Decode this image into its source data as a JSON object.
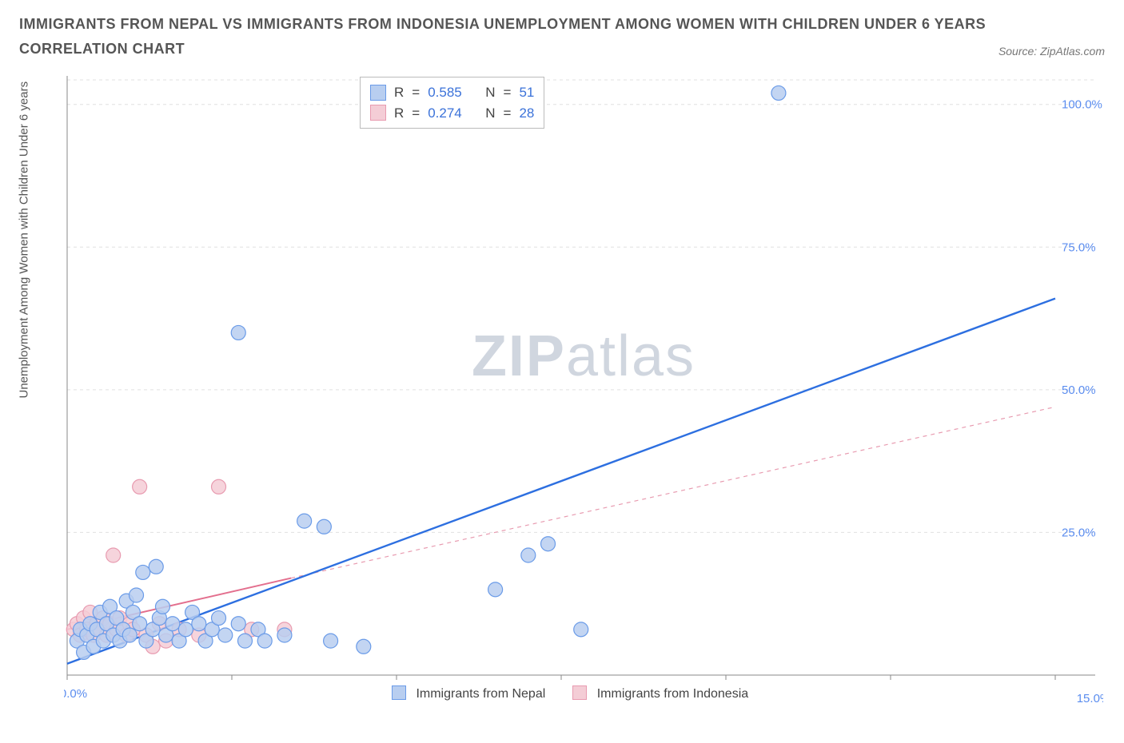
{
  "title_line1": "IMMIGRANTS FROM NEPAL VS IMMIGRANTS FROM INDONESIA UNEMPLOYMENT AMONG WOMEN WITH CHILDREN UNDER 6 YEARS",
  "title_line2": "CORRELATION CHART",
  "source_label": "Source: ZipAtlas.com",
  "y_axis_label": "Unemployment Among Women with Children Under 6 years",
  "watermark_bold": "ZIP",
  "watermark_light": "atlas",
  "chart": {
    "type": "scatter",
    "background_color": "#ffffff",
    "grid_color": "#e0e0e0",
    "axis_color": "#888888",
    "xlim": [
      0,
      15
    ],
    "ylim": [
      0,
      105
    ],
    "x_ticks": [
      0
    ],
    "x_tick_labels": [
      "0.0%"
    ],
    "y_ticks": [
      25,
      50,
      75,
      100
    ],
    "y_tick_labels": [
      "25.0%",
      "50.0%",
      "75.0%",
      "100.0%"
    ],
    "extra_x_label": "15.0%",
    "tick_label_color": "#5b8def",
    "marker_radius": 9,
    "marker_stroke_width": 1.2,
    "series": [
      {
        "name": "Immigrants from Nepal",
        "fill": "#b8cef0",
        "stroke": "#6a9be8",
        "line_color": "#2d6fe0",
        "line_width": 2.4,
        "line_dash": "",
        "trend_from": [
          0,
          2
        ],
        "trend_to": [
          15,
          66
        ],
        "R": "0.585",
        "N": "51",
        "points": [
          [
            0.15,
            6
          ],
          [
            0.2,
            8
          ],
          [
            0.25,
            4
          ],
          [
            0.3,
            7
          ],
          [
            0.35,
            9
          ],
          [
            0.4,
            5
          ],
          [
            0.45,
            8
          ],
          [
            0.5,
            11
          ],
          [
            0.55,
            6
          ],
          [
            0.6,
            9
          ],
          [
            0.65,
            12
          ],
          [
            0.7,
            7
          ],
          [
            0.75,
            10
          ],
          [
            0.8,
            6
          ],
          [
            0.85,
            8
          ],
          [
            0.9,
            13
          ],
          [
            0.95,
            7
          ],
          [
            1.0,
            11
          ],
          [
            1.1,
            9
          ],
          [
            1.15,
            18
          ],
          [
            1.2,
            6
          ],
          [
            1.3,
            8
          ],
          [
            1.35,
            19
          ],
          [
            1.4,
            10
          ],
          [
            1.5,
            7
          ],
          [
            1.6,
            9
          ],
          [
            1.7,
            6
          ],
          [
            1.8,
            8
          ],
          [
            1.9,
            11
          ],
          [
            2.0,
            9
          ],
          [
            2.1,
            6
          ],
          [
            2.2,
            8
          ],
          [
            2.3,
            10
          ],
          [
            2.4,
            7
          ],
          [
            2.6,
            9
          ],
          [
            2.7,
            6
          ],
          [
            2.9,
            8
          ],
          [
            3.0,
            6
          ],
          [
            3.3,
            7
          ],
          [
            3.6,
            27
          ],
          [
            3.9,
            26
          ],
          [
            4.0,
            6
          ],
          [
            4.5,
            5
          ],
          [
            2.6,
            60
          ],
          [
            6.5,
            15
          ],
          [
            7.0,
            21
          ],
          [
            7.3,
            23
          ],
          [
            7.8,
            8
          ],
          [
            10.8,
            102
          ],
          [
            1.05,
            14
          ],
          [
            1.45,
            12
          ]
        ]
      },
      {
        "name": "Immigrants from Indonesia",
        "fill": "#f4cdd6",
        "stroke": "#e89bb0",
        "line_color": "#e36f8e",
        "line_width": 2,
        "line_dash": "",
        "dashed_ext_color": "#e89bb0",
        "dashed_ext_dash": "5 5",
        "trend_from": [
          0,
          8
        ],
        "trend_to": [
          3.4,
          17
        ],
        "dashed_ext_from": [
          3.4,
          17
        ],
        "dashed_ext_to": [
          15,
          47
        ],
        "R": "0.274",
        "N": "28",
        "points": [
          [
            0.1,
            8
          ],
          [
            0.15,
            9
          ],
          [
            0.2,
            7
          ],
          [
            0.25,
            10
          ],
          [
            0.3,
            8
          ],
          [
            0.35,
            11
          ],
          [
            0.4,
            7
          ],
          [
            0.45,
            9
          ],
          [
            0.5,
            8
          ],
          [
            0.55,
            10
          ],
          [
            0.6,
            7
          ],
          [
            0.65,
            9
          ],
          [
            0.7,
            21
          ],
          [
            0.75,
            8
          ],
          [
            0.8,
            10
          ],
          [
            0.9,
            7
          ],
          [
            0.95,
            9
          ],
          [
            1.0,
            8
          ],
          [
            1.1,
            33
          ],
          [
            1.2,
            7
          ],
          [
            1.3,
            5
          ],
          [
            1.4,
            9
          ],
          [
            1.5,
            6
          ],
          [
            1.7,
            8
          ],
          [
            2.0,
            7
          ],
          [
            2.3,
            33
          ],
          [
            2.8,
            8
          ],
          [
            3.3,
            8
          ]
        ]
      }
    ]
  },
  "legend": {
    "label_nepal": "Immigrants from Nepal",
    "label_indonesia": "Immigrants from Indonesia",
    "R_label": "R",
    "N_label": "N",
    "eq": "="
  }
}
